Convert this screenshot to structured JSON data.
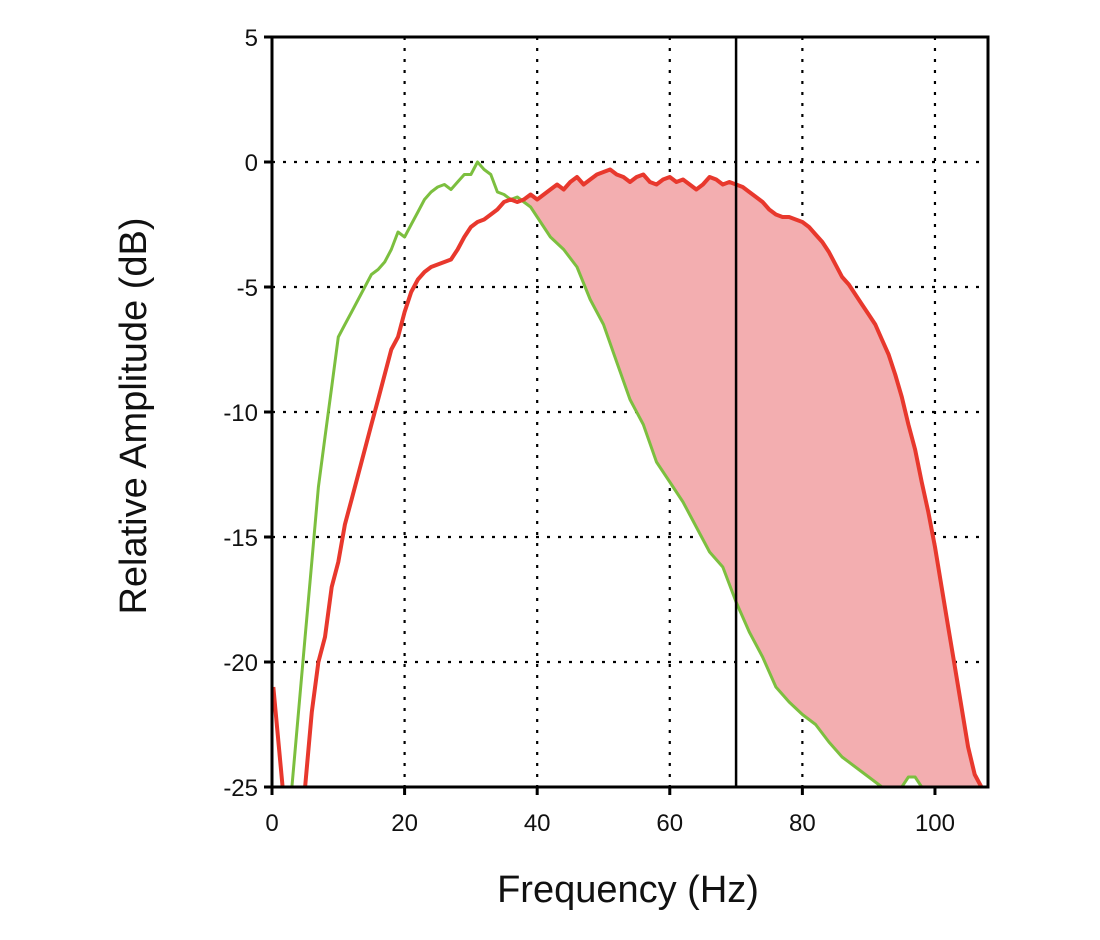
{
  "chart_data": {
    "type": "line",
    "title": "",
    "xlabel": "Frequency (Hz)",
    "ylabel": "Relative Amplitude (dB)",
    "xlim": [
      0,
      108
    ],
    "ylim": [
      -25,
      5
    ],
    "x_ticks": [
      0,
      20,
      40,
      60,
      80,
      100
    ],
    "x_tick_labels": [
      "0",
      "20",
      "40",
      "60",
      "80",
      "100"
    ],
    "y_ticks": [
      5,
      0,
      -5,
      -10,
      -15,
      -20,
      -25
    ],
    "y_tick_labels": [
      "5",
      "0",
      "-5",
      "-10",
      "-15",
      "-20",
      "-25"
    ],
    "grid": true,
    "grid_style": "dotted",
    "legend": "none",
    "vertical_marker_x": 70,
    "fill_between": {
      "upper": "red",
      "lower": "green",
      "x_range": [
        36.5,
        107
      ],
      "color": "#f3aeb0"
    },
    "series": [
      {
        "color": "#7cbf3f",
        "x": [
          3,
          4,
          5,
          6,
          7,
          8,
          9,
          10,
          11,
          12,
          13,
          14,
          15,
          16,
          17,
          18,
          19,
          20,
          21,
          22,
          23,
          24,
          25,
          26,
          27,
          28,
          29,
          30,
          31,
          32,
          33,
          34,
          35,
          36,
          37,
          38,
          39,
          40,
          42,
          44,
          46,
          48,
          50,
          52,
          54,
          56,
          58,
          60,
          62,
          64,
          66,
          68,
          70,
          72,
          74,
          76,
          78,
          80,
          82,
          84,
          86,
          88,
          90,
          92,
          95,
          96,
          97,
          98
        ],
        "y": [
          -25,
          -22,
          -19,
          -16,
          -13,
          -11,
          -9,
          -7,
          -6.5,
          -6,
          -5.5,
          -5,
          -4.5,
          -4.3,
          -4,
          -3.5,
          -2.8,
          -3,
          -2.5,
          -2,
          -1.5,
          -1.2,
          -1,
          -0.9,
          -1.1,
          -0.8,
          -0.5,
          -0.5,
          0,
          -0.3,
          -0.5,
          -1.2,
          -1.3,
          -1.5,
          -1.4,
          -1.6,
          -1.8,
          -2.2,
          -3,
          -3.5,
          -4.2,
          -5.5,
          -6.5,
          -8,
          -9.5,
          -10.5,
          -12,
          -12.8,
          -13.6,
          -14.6,
          -15.6,
          -16.2,
          -17.6,
          -18.8,
          -19.8,
          -21,
          -21.6,
          -22.1,
          -22.5,
          -23.2,
          -23.8,
          -24.2,
          -24.6,
          -25,
          -25,
          -24.6,
          -24.6,
          -25
        ]
      },
      {
        "color": "#e8382d",
        "x": [
          5,
          6,
          7,
          8,
          9,
          10,
          11,
          12,
          13,
          14,
          15,
          16,
          17,
          18,
          19,
          20,
          21,
          22,
          23,
          24,
          25,
          26,
          27,
          28,
          29,
          30,
          31,
          32,
          33,
          34,
          35,
          36,
          37,
          38,
          39,
          40,
          41,
          42,
          43,
          44,
          45,
          46,
          47,
          48,
          49,
          50,
          51,
          52,
          53,
          54,
          55,
          56,
          57,
          58,
          59,
          60,
          61,
          62,
          63,
          64,
          65,
          66,
          67,
          68,
          69,
          70,
          71,
          72,
          73,
          74,
          75,
          76,
          77,
          78,
          79,
          80,
          81,
          82,
          83,
          84,
          85,
          86,
          87,
          88,
          89,
          90,
          91,
          92,
          93,
          94,
          95,
          96,
          97,
          98,
          99,
          100,
          101,
          102,
          103,
          104,
          105,
          106,
          107
        ],
        "y": [
          -25,
          -22,
          -20,
          -19,
          -17,
          -16,
          -14.5,
          -13.5,
          -12.5,
          -11.5,
          -10.5,
          -9.5,
          -8.5,
          -7.5,
          -7,
          -6,
          -5.2,
          -4.7,
          -4.4,
          -4.2,
          -4.1,
          -4,
          -3.9,
          -3.5,
          -3,
          -2.6,
          -2.4,
          -2.3,
          -2.1,
          -1.9,
          -1.6,
          -1.5,
          -1.6,
          -1.5,
          -1.3,
          -1.5,
          -1.3,
          -1.1,
          -0.9,
          -1.1,
          -0.8,
          -0.6,
          -0.9,
          -0.7,
          -0.5,
          -0.4,
          -0.3,
          -0.5,
          -0.6,
          -0.8,
          -0.6,
          -0.5,
          -0.8,
          -0.9,
          -0.7,
          -0.6,
          -0.8,
          -0.7,
          -0.9,
          -1.1,
          -0.9,
          -0.6,
          -0.7,
          -0.9,
          -0.8,
          -0.9,
          -1,
          -1.2,
          -1.4,
          -1.6,
          -1.9,
          -2.1,
          -2.2,
          -2.2,
          -2.3,
          -2.4,
          -2.6,
          -2.9,
          -3.2,
          -3.6,
          -4.1,
          -4.6,
          -4.9,
          -5.3,
          -5.7,
          -6.1,
          -6.5,
          -7.1,
          -7.7,
          -8.5,
          -9.4,
          -10.5,
          -11.5,
          -12.8,
          -14,
          -15.4,
          -17,
          -18.6,
          -20.2,
          -21.8,
          -23.4,
          -24.5,
          -25
        ]
      }
    ]
  }
}
